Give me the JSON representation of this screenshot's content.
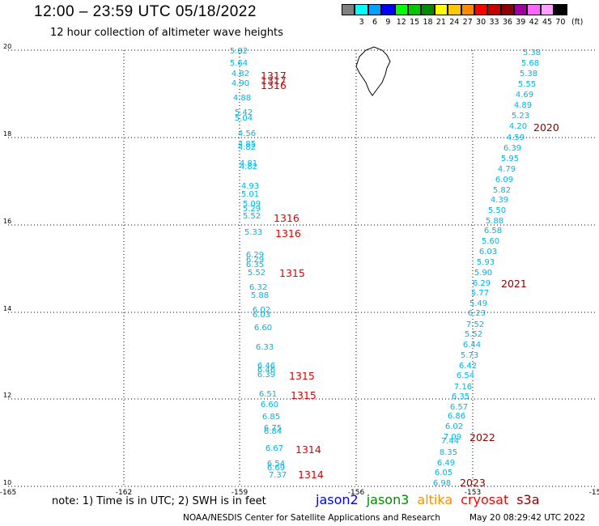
{
  "header": {
    "title": "12:00 – 23:59 UTC 05/18/2022",
    "subtitle": "12 hour collection of altimeter wave heights"
  },
  "colorbar": {
    "colors": [
      "#808080",
      "#00ffff",
      "#00a0ff",
      "#0000ff",
      "#00ff00",
      "#00c800",
      "#008c00",
      "#ffff00",
      "#ffc800",
      "#ff8c00",
      "#ff0000",
      "#c80000",
      "#8c0000",
      "#a000a0",
      "#ff64ff",
      "#ffa0ff",
      "#000000"
    ],
    "labels": [
      "3",
      "6",
      "9",
      "12",
      "15",
      "18",
      "21",
      "24",
      "27",
      "30",
      "33",
      "36",
      "39",
      "42",
      "45",
      "70"
    ],
    "unit": "(ft)"
  },
  "axes": {
    "x_ticks": [
      "-165",
      "-162",
      "-159",
      "-156",
      "-153",
      "-15"
    ],
    "y_ticks": [
      "20",
      "18",
      "16",
      "14",
      "12",
      "10"
    ]
  },
  "tracks": {
    "west": {
      "color": "#00b4e6",
      "values": [
        "5.82",
        "5.64",
        "4.82",
        "4.90",
        "4.88",
        "5.42",
        "5.04",
        "4.56",
        "4.85",
        "4.82",
        "4.81",
        "4.82",
        "4.93",
        "5.01",
        "5.09",
        "5.29",
        "5.52",
        "5.33",
        "6.29",
        "6.29",
        "6.35",
        "5.52",
        "6.32",
        "5.88",
        "6.02",
        "6.03",
        "6.60",
        "6.33",
        "6.46",
        "6.46",
        "6.39",
        "6.51",
        "6.60",
        "6.85",
        "6.75",
        "6.84",
        "6.67",
        "6.54",
        "6.69",
        "7.37"
      ],
      "passes": [
        "1317",
        "1317",
        "1316",
        "1316",
        "1316",
        "1315",
        "1315",
        "1315",
        "1314",
        "1314"
      ]
    },
    "east": {
      "color": "#00b4e6",
      "values": [
        "5.38",
        "5.68",
        "5.38",
        "5.55",
        "4.69",
        "4.89",
        "5.23",
        "4.20",
        "4.59",
        "6.39",
        "5.95",
        "4.79",
        "6.09",
        "5.82",
        "4.39",
        "5.50",
        "5.88",
        "6.58",
        "5.60",
        "6.03",
        "5.93",
        "5.90",
        "6.29",
        "5.77",
        "5.49",
        "6.23",
        "7.52",
        "5.52",
        "6.44",
        "5.73",
        "6.42",
        "6.54",
        "7.16",
        "6.35",
        "6.57",
        "6.86",
        "6.02",
        "7.09",
        "7.44",
        "8.35",
        "6.49",
        "6.05",
        "6.98"
      ],
      "passes": [
        "2020",
        "2021",
        "2022",
        "2023"
      ]
    }
  },
  "footer": {
    "note": "note:  1) Time is in UTC; 2) SWH is in feet",
    "legend": [
      {
        "label": "jason2",
        "color": "#0000ff"
      },
      {
        "label": "jason3",
        "color": "#008c00"
      },
      {
        "label": "altika",
        "color": "#ff8c00"
      },
      {
        "label": "cryosat",
        "color": "#ff0000"
      },
      {
        "label": "s3a",
        "color": "#8c0000"
      }
    ],
    "credit": "NOAA/NESDIS Center for Satellite Applications and Research",
    "timestamp": "May 20 08:29:42 UTC 2022"
  }
}
